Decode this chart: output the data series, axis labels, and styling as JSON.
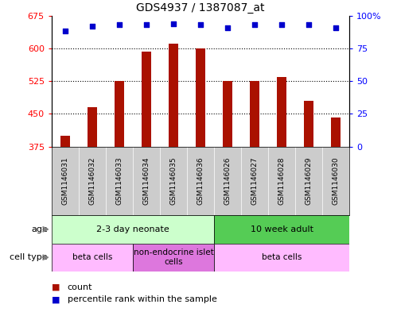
{
  "title": "GDS4937 / 1387087_at",
  "samples": [
    "GSM1146031",
    "GSM1146032",
    "GSM1146033",
    "GSM1146034",
    "GSM1146035",
    "GSM1146036",
    "GSM1146026",
    "GSM1146027",
    "GSM1146028",
    "GSM1146029",
    "GSM1146030"
  ],
  "counts": [
    400,
    465,
    525,
    592,
    610,
    600,
    525,
    525,
    535,
    480,
    442
  ],
  "percentiles": [
    88,
    92,
    93,
    93,
    94,
    93,
    91,
    93,
    93,
    93,
    91
  ],
  "ymin": 375,
  "ymax": 675,
  "yticks": [
    375,
    450,
    525,
    600,
    675
  ],
  "y2ticks": [
    0,
    25,
    50,
    75,
    100
  ],
  "bar_color": "#aa1100",
  "dot_color": "#0000cc",
  "background_color": "#ffffff",
  "sample_bg_color": "#cccccc",
  "age_groups": [
    {
      "label": "2-3 day neonate",
      "start": 0,
      "end": 6,
      "color": "#ccffcc"
    },
    {
      "label": "10 week adult",
      "start": 6,
      "end": 11,
      "color": "#55cc55"
    }
  ],
  "cell_type_groups": [
    {
      "label": "beta cells",
      "start": 0,
      "end": 3,
      "color": "#ffbbff"
    },
    {
      "label": "non-endocrine islet\ncells",
      "start": 3,
      "end": 6,
      "color": "#dd77dd"
    },
    {
      "label": "beta cells",
      "start": 6,
      "end": 11,
      "color": "#ffbbff"
    }
  ],
  "legend_count_label": "count",
  "legend_percentile_label": "percentile rank within the sample",
  "age_label": "age",
  "cell_type_label": "cell type"
}
